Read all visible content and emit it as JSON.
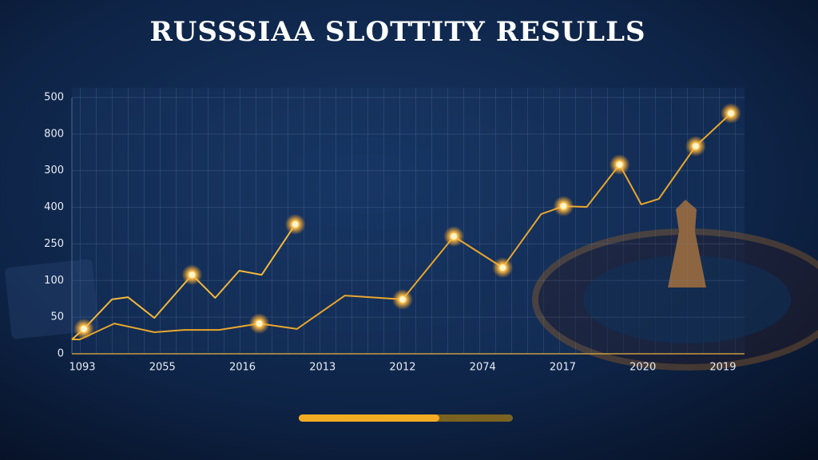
{
  "chart_data": {
    "type": "line",
    "title": "RUSSSIAA SLOTTITY RESULLS",
    "categories": [
      "1093",
      "2055",
      "2016",
      "2013",
      "2012",
      "2074",
      "2017",
      "2020",
      "2019"
    ],
    "y_axis_labels": [
      "500",
      "800",
      "300",
      "400",
      "250",
      "100",
      "50",
      "0"
    ],
    "xlim": [
      -0.13,
      8.27
    ],
    "ylim": [
      0,
      100
    ],
    "series": [
      {
        "color": "#f5b83a",
        "x": [
          -0.13,
          0.02,
          0.37,
          0.57,
          0.9,
          1.37,
          1.66,
          1.96,
          2.24,
          2.66
        ],
        "values": [
          5.6,
          9.7,
          21.2,
          22.1,
          14.0,
          30.8,
          21.8,
          32.4,
          30.8,
          50.5
        ],
        "highlight": [
          1,
          5,
          9
        ]
      },
      {
        "color": "#e9a62c",
        "x": [
          -0.13,
          -0.03,
          0.4,
          0.9,
          1.27,
          1.71,
          2.21,
          2.68,
          3.28,
          4.0,
          4.64,
          5.25,
          5.73,
          6.01,
          6.3,
          6.71,
          6.98,
          7.2,
          7.66,
          8.1
        ],
        "values": [
          5.6,
          5.6,
          11.8,
          8.4,
          9.3,
          9.3,
          11.8,
          9.7,
          22.7,
          21.2,
          45.8,
          33.6,
          54.5,
          57.6,
          57.3,
          73.8,
          58.3,
          60.4,
          81.0,
          93.8
        ],
        "highlight": [
          6,
          9,
          10,
          11,
          13,
          15,
          18,
          19
        ]
      }
    ]
  }
}
